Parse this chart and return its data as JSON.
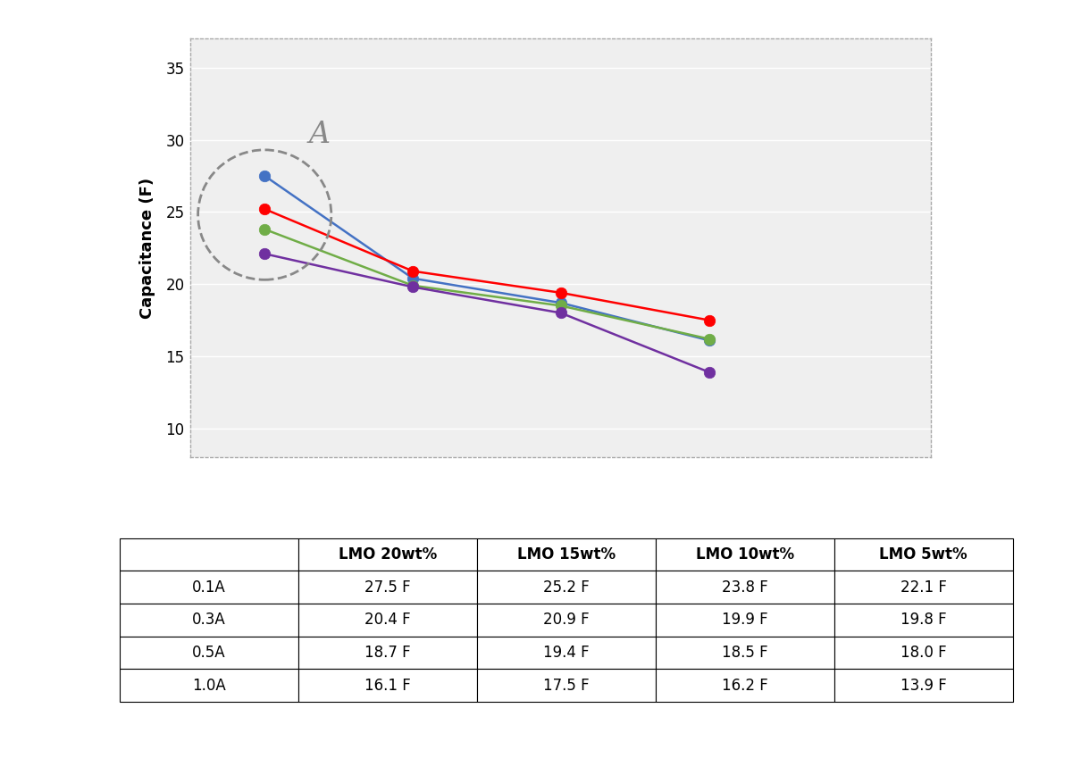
{
  "x_values": [
    1,
    2,
    3,
    4
  ],
  "x_labels": [
    "0.1A",
    "0.3A",
    "0.5A",
    "1.0A"
  ],
  "series": [
    {
      "label": "LMO 20wt%",
      "color": "#4472C4",
      "values": [
        27.5,
        20.4,
        18.7,
        16.1
      ]
    },
    {
      "label": "LMO 15wt%",
      "color": "#FF0000",
      "values": [
        25.2,
        20.9,
        19.4,
        17.5
      ]
    },
    {
      "label": "LMO 10wt%",
      "color": "#70AD47",
      "values": [
        23.8,
        19.9,
        18.5,
        16.2
      ]
    },
    {
      "label": "LMO 5wt%",
      "color": "#7030A0",
      "values": [
        22.1,
        19.8,
        18.0,
        13.9
      ]
    }
  ],
  "ylabel": "Capacitance (F)",
  "ylim": [
    8,
    37
  ],
  "yticks": [
    10,
    15,
    20,
    25,
    30,
    35
  ],
  "xlim": [
    0.5,
    5.5
  ],
  "table_headers": [
    "",
    "LMO 20wt%",
    "LMO 15wt%",
    "LMO 10wt%",
    "LMO 5wt%"
  ],
  "table_rows": [
    [
      "0.1A",
      "27.5 F",
      "25.2 F",
      "23.8 F",
      "22.1 F"
    ],
    [
      "0.3A",
      "20.4 F",
      "20.9 F",
      "19.9 F",
      "19.8 F"
    ],
    [
      "0.5A",
      "18.7 F",
      "19.4 F",
      "18.5 F",
      "18.0 F"
    ],
    [
      "1.0A",
      "16.1 F",
      "17.5 F",
      "16.2 F",
      "13.9 F"
    ]
  ],
  "annotation_text": "A",
  "background_color": "#FFFFFF",
  "plot_bg_color": "#EFEFEF",
  "border_color": "#AAAAAA"
}
